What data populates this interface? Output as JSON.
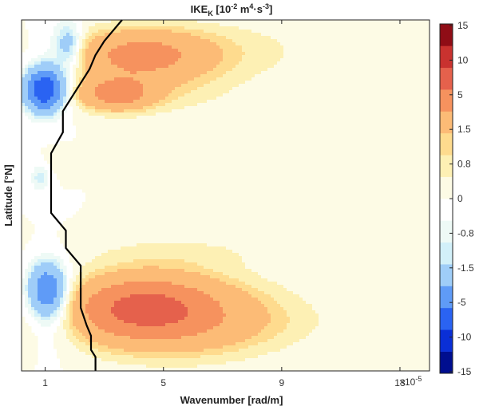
{
  "chart_data": {
    "type": "heatmap",
    "title": "IKE",
    "title_subscript": "K",
    "title_units_prefix": " [10",
    "title_units_exp1": "-2",
    "title_units_mid": " m",
    "title_units_exp2": "4",
    "title_units_mid2": "·s",
    "title_units_exp3": "-3",
    "title_units_suffix": "]",
    "xlabel": "Wavenumber [rad/m]",
    "ylabel": "Latitude [°N]",
    "x_multiplier_base": "×10",
    "x_multiplier_exp": "-5",
    "xlim": [
      0.2,
      14
    ],
    "x_ticks": [
      1,
      5,
      9,
      13
    ],
    "y_ticks": [],
    "grid": false,
    "colorbar": {
      "position": "right",
      "levels": [
        -15,
        -10,
        -5,
        -1.5,
        -0.8,
        0,
        0.8,
        1.5,
        5,
        10,
        15
      ],
      "tick_labels": [
        "15",
        "10",
        "5",
        "1.5",
        "0.8",
        "0",
        "-0.8",
        "-1.5",
        "-5",
        "-10",
        "-15"
      ],
      "colors": [
        "#000e8f",
        "#0a2fd6",
        "#2a63f2",
        "#5f9bf7",
        "#9fcdf8",
        "#d2f0f9",
        "#eefaf6",
        "#ffffff",
        "#fdfbe5",
        "#fdf0b4",
        "#fedb8e",
        "#fcbb76",
        "#f6925e",
        "#e5614c",
        "#c9322f",
        "#8f0d16"
      ]
    },
    "blobs": [
      {
        "x": 4.2,
        "y": 0.9,
        "sx": 1.4,
        "sy": 0.045,
        "value": 3.5
      },
      {
        "x": 6.0,
        "y": 0.91,
        "sx": 2.6,
        "sy": 0.06,
        "value": 1.0
      },
      {
        "x": 3.4,
        "y": 0.79,
        "sx": 0.8,
        "sy": 0.03,
        "value": 4.0
      },
      {
        "x": 4.5,
        "y": 0.8,
        "sx": 1.9,
        "sy": 0.05,
        "value": 0.9
      },
      {
        "x": 4.2,
        "y": 0.18,
        "sx": 1.6,
        "sy": 0.06,
        "value": 5.0
      },
      {
        "x": 5.5,
        "y": 0.16,
        "sx": 2.2,
        "sy": 0.08,
        "value": 2.0
      },
      {
        "x": 6.6,
        "y": 0.14,
        "sx": 2.6,
        "sy": 0.06,
        "value": 0.8
      },
      {
        "x": 5.5,
        "y": 0.34,
        "sx": 2.4,
        "sy": 0.035,
        "value": 0.5
      },
      {
        "x": 2.0,
        "y": 0.6,
        "sx": 0.5,
        "sy": 0.02,
        "value": 0.5
      },
      {
        "x": 0.95,
        "y": 0.8,
        "sx": 0.42,
        "sy": 0.04,
        "value": -8.0
      },
      {
        "x": 1.8,
        "y": 0.93,
        "sx": 0.3,
        "sy": 0.04,
        "value": -2.0
      },
      {
        "x": 1.4,
        "y": 0.88,
        "sx": 0.55,
        "sy": 0.08,
        "value": -0.9
      },
      {
        "x": 0.8,
        "y": 0.55,
        "sx": 0.2,
        "sy": 0.025,
        "value": -1.2
      },
      {
        "x": 1.05,
        "y": 0.23,
        "sx": 0.4,
        "sy": 0.05,
        "value": -5.0
      },
      {
        "x": 1.45,
        "y": 0.18,
        "sx": 0.6,
        "sy": 0.08,
        "value": -1.0
      }
    ],
    "boundary_line": {
      "x": [
        2.7,
        2.7,
        2.55,
        2.55,
        2.4,
        2.2,
        2.2,
        2.2,
        1.7,
        1.7,
        1.2,
        1.2,
        1.2,
        1.6,
        1.6,
        1.9,
        2.2,
        2.5,
        2.7,
        3.0,
        3.3,
        3.6
      ],
      "y": [
        0.0,
        0.04,
        0.06,
        0.1,
        0.13,
        0.18,
        0.25,
        0.3,
        0.35,
        0.4,
        0.45,
        0.55,
        0.62,
        0.68,
        0.74,
        0.78,
        0.82,
        0.86,
        0.9,
        0.94,
        0.97,
        1.0
      ]
    }
  }
}
